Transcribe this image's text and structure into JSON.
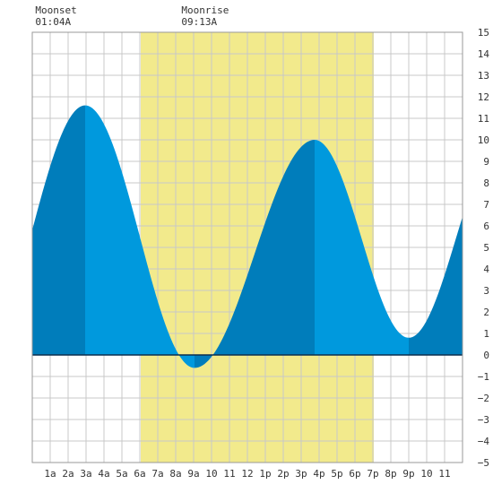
{
  "chart_data": {
    "type": "area",
    "x_unit": "hour of day",
    "x_ticks": [
      {
        "hour": 1,
        "label": "1a"
      },
      {
        "hour": 2,
        "label": "2a"
      },
      {
        "hour": 3,
        "label": "3a"
      },
      {
        "hour": 4,
        "label": "4a"
      },
      {
        "hour": 5,
        "label": "5a"
      },
      {
        "hour": 6,
        "label": "6a"
      },
      {
        "hour": 7,
        "label": "7a"
      },
      {
        "hour": 8,
        "label": "8a"
      },
      {
        "hour": 9,
        "label": "9a"
      },
      {
        "hour": 10,
        "label": "10"
      },
      {
        "hour": 11,
        "label": "11"
      },
      {
        "hour": 12,
        "label": "12"
      },
      {
        "hour": 13,
        "label": "1p"
      },
      {
        "hour": 14,
        "label": "2p"
      },
      {
        "hour": 15,
        "label": "3p"
      },
      {
        "hour": 16,
        "label": "4p"
      },
      {
        "hour": 17,
        "label": "5p"
      },
      {
        "hour": 18,
        "label": "6p"
      },
      {
        "hour": 19,
        "label": "7p"
      },
      {
        "hour": 20,
        "label": "8p"
      },
      {
        "hour": 21,
        "label": "9p"
      },
      {
        "hour": 22,
        "label": "10"
      },
      {
        "hour": 23,
        "label": "11"
      }
    ],
    "xlim": [
      0,
      24
    ],
    "ylim": [
      -5,
      15
    ],
    "y_ticks": [
      -5,
      -4,
      -3,
      -2,
      -1,
      0,
      1,
      2,
      3,
      4,
      5,
      6,
      7,
      8,
      9,
      10,
      11,
      12,
      13,
      14,
      15
    ],
    "grid": true,
    "y_axis_side": "right",
    "tide_extremes": [
      {
        "type": "high",
        "hour": 2.95,
        "height": 11.6
      },
      {
        "type": "low",
        "hour": 9.05,
        "height": -0.6
      },
      {
        "type": "high",
        "hour": 15.75,
        "height": 10.0
      },
      {
        "type": "low",
        "hour": 21.0,
        "height": 0.8
      }
    ],
    "start_height": 6.9,
    "end_height": 4.3,
    "daylight": {
      "start_hour": 6.05,
      "end_hour": 19.05
    },
    "moon_events": [
      {
        "label": "Moonset",
        "time": "01:04A",
        "hour": 1.07
      },
      {
        "label": "Moonrise",
        "time": "09:13A",
        "hour": 9.22
      }
    ],
    "colors": {
      "daylight": "#f2ea8c",
      "rising": "#007dbb",
      "falling": "#0099dd",
      "grid": "#c8c8c8",
      "zero_line": "#0a2f4f",
      "text": "#333333"
    }
  }
}
